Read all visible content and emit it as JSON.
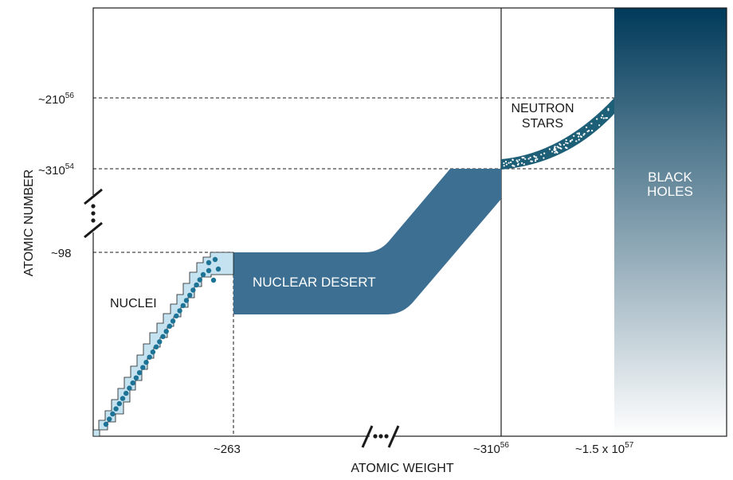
{
  "axes": {
    "x_title": "ATOMIC WEIGHT",
    "y_title": "ATOMIC NUMBER",
    "x_ticks": [
      {
        "base": "~263",
        "sup": ""
      },
      {
        "base": "~310",
        "sup": "56"
      },
      {
        "base": "~1.5 x 10",
        "sup": "57"
      }
    ],
    "y_ticks": [
      {
        "base": "~210",
        "sup": "56"
      },
      {
        "base": "~310",
        "sup": "54"
      },
      {
        "base": "~98",
        "sup": ""
      }
    ]
  },
  "regions": {
    "nuclei": "NUCLEI",
    "nuclear_desert": "NUCLEAR DESERT",
    "neutron_stars": [
      "NEUTRON",
      "STARS"
    ],
    "black_holes": [
      "BLACK",
      "HOLES"
    ]
  },
  "colors": {
    "desert": "#3d6f93",
    "neutron_band": "#1e5f78",
    "nuclei_fill": "#c4e2ef",
    "nuclei_dots": "#1d7396",
    "black_holes_top": "#003a5a",
    "black_holes_bottom": "#ffffff"
  }
}
